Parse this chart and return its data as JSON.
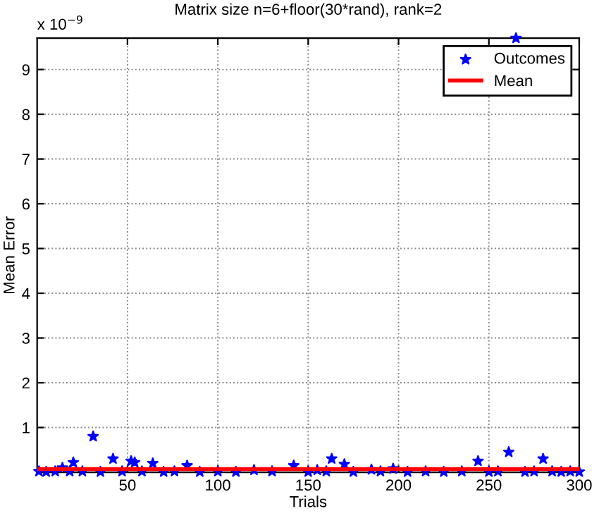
{
  "chart_data": {
    "type": "scatter",
    "title": "Matrix size n=6+floor(30*rand), rank=2",
    "xlabel": "Trials",
    "ylabel": "Mean Error",
    "annotations": [
      "x 10$^{−9}$"
    ],
    "series": [
      {
        "name": "Outcomes",
        "marker": "star",
        "color": "#0000ff",
        "x": [
          1,
          5,
          10,
          14,
          18,
          20,
          25,
          31,
          35,
          42,
          47,
          52,
          54,
          58,
          64,
          70,
          76,
          83,
          90,
          100,
          110,
          120,
          130,
          142,
          150,
          155,
          160,
          163,
          170,
          175,
          185,
          190,
          197,
          205,
          215,
          225,
          235,
          244,
          250,
          255,
          261,
          265,
          270,
          275,
          280,
          285,
          290,
          295,
          300
        ],
        "values": [
          0.02,
          0.01,
          0.02,
          0.1,
          0.02,
          0.22,
          0.02,
          0.8,
          0.01,
          0.3,
          0.02,
          0.25,
          0.22,
          0.02,
          0.2,
          0.01,
          0.02,
          0.15,
          0.01,
          0.02,
          0.01,
          0.05,
          0.02,
          0.15,
          0.01,
          0.05,
          0.02,
          0.3,
          0.18,
          0.01,
          0.06,
          0.02,
          0.08,
          0.01,
          0.02,
          0.01,
          0.02,
          0.25,
          0.01,
          0.02,
          0.45,
          9.7,
          0.01,
          0.02,
          0.3,
          0.02,
          0.01,
          0.02,
          0.01
        ]
      },
      {
        "name": "Mean",
        "type": "line",
        "marker": "none",
        "line_style": "solid",
        "color": "#ff0000",
        "x": [
          0,
          300
        ],
        "values": [
          0.07,
          0.07
        ]
      }
    ],
    "xlim": [
      0,
      300
    ],
    "ylim": [
      0,
      9.7
    ],
    "xticks": [
      50,
      100,
      150,
      200,
      250,
      300
    ],
    "yticks": [
      1,
      2,
      3,
      4,
      5,
      6,
      7,
      8,
      9
    ],
    "grid": true,
    "legend": "top right"
  }
}
